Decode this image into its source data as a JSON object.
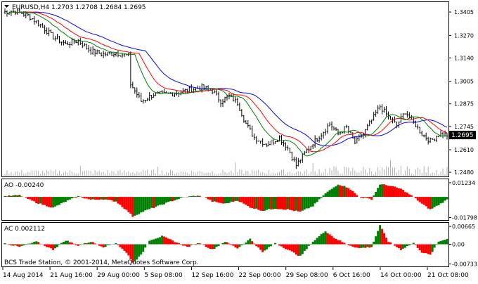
{
  "chart_data": {
    "type": "line",
    "symbol_title": "EURUSD,H4  1.2703  1.2708  1.2684  1.2695",
    "current_price": "1.2695",
    "price_ticks": [
      "1.3405",
      "1.3270",
      "1.3140",
      "1.3005",
      "1.2875",
      "1.2745",
      "1.2610",
      "1.2480"
    ],
    "price_range": [
      1.246,
      1.345
    ],
    "x_labels": [
      "14 Aug 2014",
      "21 Aug 16:00",
      "29 Aug 00:00",
      "5 Sep 08:00",
      "12 Sep 16:00",
      "22 Sep 00:00",
      "29 Sep 08:00",
      "6 Oct 16:00",
      "14 Oct 00:00",
      "21 Oct 08:00"
    ],
    "price_path": [
      [
        0,
        1.3405
      ],
      [
        6,
        1.341
      ],
      [
        12,
        1.3385
      ],
      [
        18,
        1.333
      ],
      [
        24,
        1.326
      ],
      [
        30,
        1.322
      ],
      [
        36,
        1.324
      ],
      [
        42,
        1.318
      ],
      [
        48,
        1.316
      ],
      [
        54,
        1.317
      ],
      [
        60,
        1.315
      ],
      [
        61,
        1.299
      ],
      [
        66,
        1.289
      ],
      [
        72,
        1.293
      ],
      [
        78,
        1.293
      ],
      [
        84,
        1.294
      ],
      [
        90,
        1.296
      ],
      [
        95,
        1.297
      ],
      [
        100,
        1.295
      ],
      [
        104,
        1.289
      ],
      [
        108,
        1.292
      ],
      [
        112,
        1.288
      ],
      [
        116,
        1.276
      ],
      [
        120,
        1.268
      ],
      [
        126,
        1.264
      ],
      [
        132,
        1.268
      ],
      [
        136,
        1.262
      ],
      [
        140,
        1.252
      ],
      [
        144,
        1.259
      ],
      [
        148,
        1.265
      ],
      [
        152,
        1.27
      ],
      [
        156,
        1.276
      ],
      [
        160,
        1.27
      ],
      [
        164,
        1.274
      ],
      [
        168,
        1.265
      ],
      [
        172,
        1.27
      ],
      [
        176,
        1.278
      ],
      [
        180,
        1.286
      ],
      [
        184,
        1.28
      ],
      [
        188,
        1.275
      ],
      [
        192,
        1.283
      ],
      [
        196,
        1.277
      ],
      [
        200,
        1.27
      ],
      [
        204,
        1.266
      ],
      [
        208,
        1.27
      ],
      [
        212,
        1.2695
      ]
    ],
    "ma_fast_color": "#008000",
    "ma_mid_color": "#ff0000",
    "ma_slow_color": "#0000ff",
    "candle_color": "#000000",
    "volume_color": "#b0b0b0",
    "ao": {
      "label": "AO -0.00240",
      "ticks": [
        "0.01234",
        "-0.01798"
      ],
      "range": [
        -0.0195,
        0.0135
      ],
      "up_color": "#008000",
      "down_color": "#ff0000",
      "path": [
        [
          0,
          0.0005
        ],
        [
          8,
          0.0015
        ],
        [
          16,
          -0.005
        ],
        [
          24,
          -0.0095
        ],
        [
          30,
          -0.004
        ],
        [
          36,
          0.0005
        ],
        [
          42,
          -0.0025
        ],
        [
          48,
          -0.002
        ],
        [
          54,
          -0.004
        ],
        [
          60,
          -0.013
        ],
        [
          62,
          -0.017
        ],
        [
          68,
          -0.012
        ],
        [
          74,
          -0.008
        ],
        [
          80,
          -0.004
        ],
        [
          86,
          -0.0005
        ],
        [
          92,
          0.001
        ],
        [
          96,
          0.0002
        ],
        [
          100,
          -0.004
        ],
        [
          106,
          -0.006
        ],
        [
          112,
          -0.003
        ],
        [
          118,
          -0.009
        ],
        [
          124,
          -0.012
        ],
        [
          130,
          -0.01
        ],
        [
          136,
          -0.011
        ],
        [
          142,
          -0.013
        ],
        [
          148,
          -0.008
        ],
        [
          154,
          0.003
        ],
        [
          160,
          0.011
        ],
        [
          165,
          0.008
        ],
        [
          170,
          0.0
        ],
        [
          176,
          -0.002
        ],
        [
          180,
          0.011
        ],
        [
          184,
          0.01
        ],
        [
          190,
          0.007
        ],
        [
          196,
          0.0
        ],
        [
          200,
          -0.006
        ],
        [
          204,
          -0.011
        ],
        [
          208,
          -0.007
        ],
        [
          212,
          -0.0024
        ]
      ]
    },
    "ac": {
      "label": "AC 0.002112",
      "ticks": [
        "0.00665",
        "0.00",
        "-0.00733"
      ],
      "range": [
        -0.008,
        0.0072
      ],
      "up_color": "#008000",
      "down_color": "#ff0000",
      "path": [
        [
          0,
          0.0005
        ],
        [
          8,
          -0.001
        ],
        [
          16,
          0.001
        ],
        [
          24,
          -0.002
        ],
        [
          30,
          0.0015
        ],
        [
          36,
          -0.0005
        ],
        [
          42,
          0.001
        ],
        [
          48,
          -0.001
        ],
        [
          54,
          0.0005
        ],
        [
          60,
          -0.004
        ],
        [
          62,
          -0.007
        ],
        [
          66,
          -0.004
        ],
        [
          70,
          0.0015
        ],
        [
          76,
          0.003
        ],
        [
          82,
          0.001
        ],
        [
          88,
          -0.001
        ],
        [
          94,
          0.0005
        ],
        [
          100,
          -0.002
        ],
        [
          106,
          0.001
        ],
        [
          112,
          -0.0015
        ],
        [
          118,
          0.002
        ],
        [
          124,
          -0.003
        ],
        [
          130,
          0.0005
        ],
        [
          136,
          -0.002
        ],
        [
          142,
          -0.0045
        ],
        [
          148,
          0.001
        ],
        [
          154,
          0.005
        ],
        [
          158,
          0.0025
        ],
        [
          164,
          0.0
        ],
        [
          170,
          -0.0015
        ],
        [
          176,
          -0.001
        ],
        [
          180,
          0.007
        ],
        [
          184,
          0.001
        ],
        [
          190,
          -0.002
        ],
        [
          196,
          0.0005
        ],
        [
          200,
          -0.003
        ],
        [
          204,
          -0.004
        ],
        [
          208,
          0.001
        ],
        [
          212,
          0.0021
        ]
      ]
    }
  },
  "footer": {
    "copyright": "BCS Trade Station, © 2001-2014, MetaQuotes Software Corp."
  }
}
